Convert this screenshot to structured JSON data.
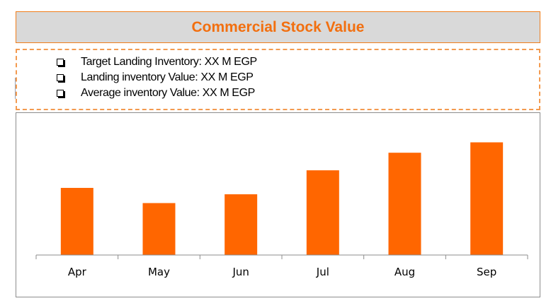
{
  "title": "Commercial Stock Value",
  "notes": [
    "Target Landing Inventory: XX M EGP",
    "Landing inventory Value: XX M EGP",
    "Average inventory Value: XX M EGP"
  ],
  "colors": {
    "bar": "#ff6600",
    "title_text": "#f26f0f",
    "border": "#f07d1a"
  },
  "chart_data": {
    "type": "bar",
    "categories": [
      "Apr",
      "May",
      "Jun",
      "Jul",
      "Aug",
      "Sep"
    ],
    "values": [
      84,
      65,
      76,
      106,
      128,
      141
    ],
    "ylim": [
      0,
      160
    ],
    "grid": false,
    "title": "",
    "xlabel": "",
    "ylabel": ""
  }
}
